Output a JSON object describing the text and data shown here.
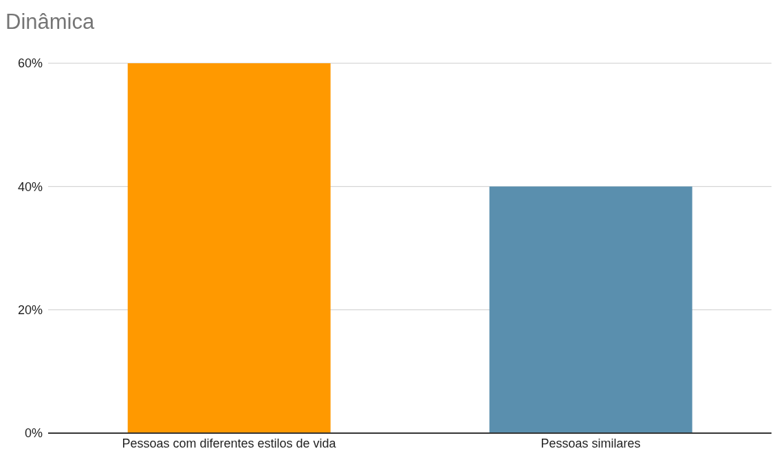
{
  "chart_data": {
    "type": "bar",
    "title": "Dinâmica",
    "categories": [
      "Pessoas com diferentes estilos de vida",
      "Pessoas similares"
    ],
    "values": [
      60,
      40
    ],
    "colors": [
      "#ff9900",
      "#5a8fae"
    ],
    "ylim": [
      0,
      60
    ],
    "yticks": [
      {
        "value": 0,
        "label": "0%"
      },
      {
        "value": 20,
        "label": "20%"
      },
      {
        "value": 40,
        "label": "40%"
      },
      {
        "value": 60,
        "label": "60%"
      }
    ],
    "grid": "y"
  }
}
